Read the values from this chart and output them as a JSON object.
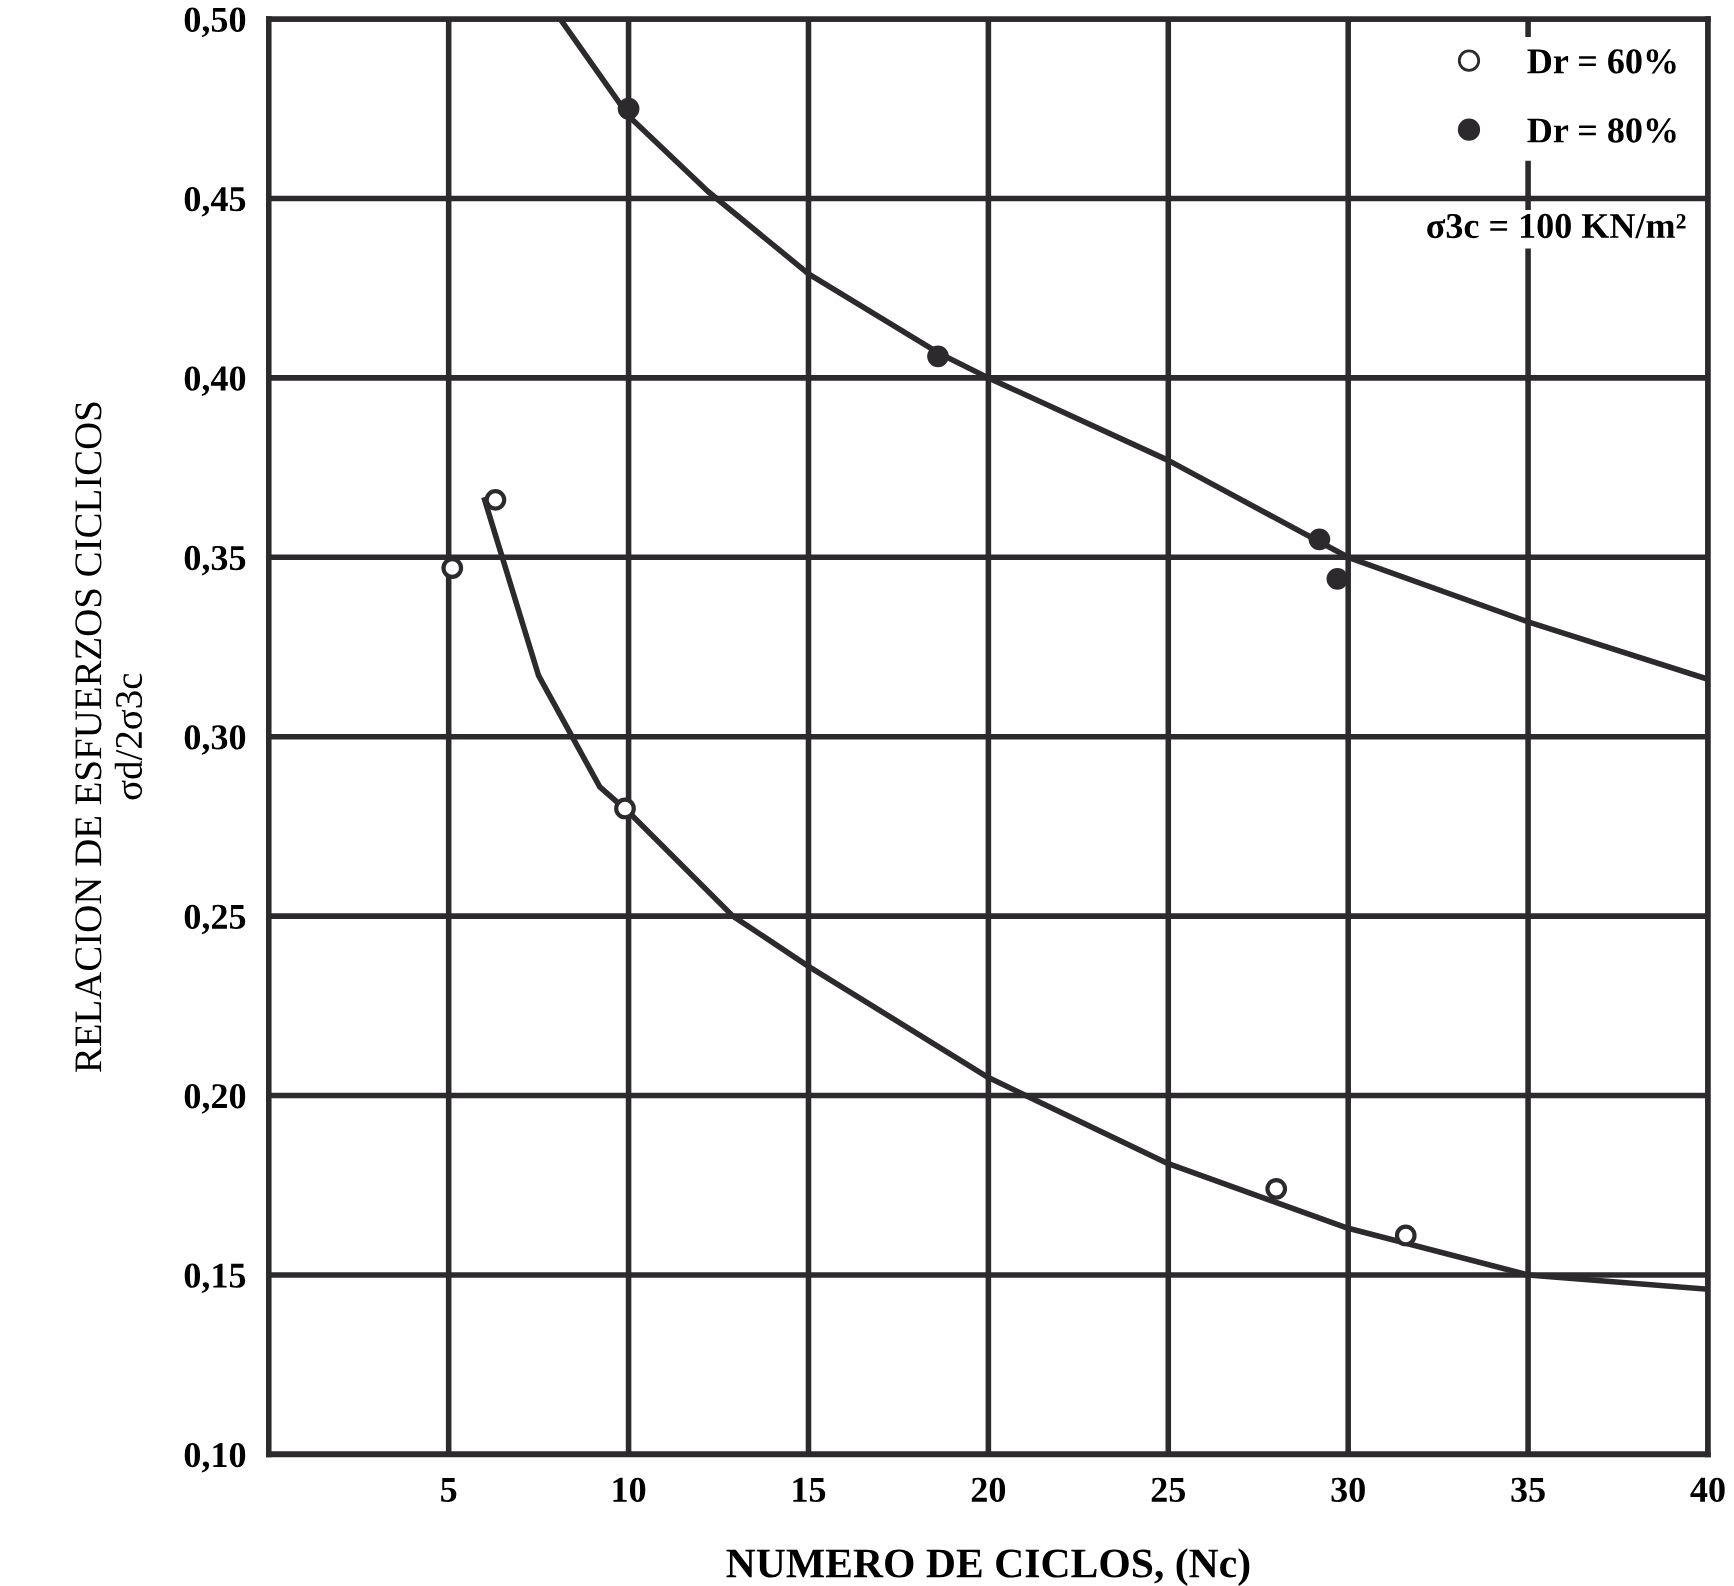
{
  "chart_data": {
    "type": "scatter",
    "xlabel": "NUMERO DE CICLOS, (Nc)",
    "ylabel": "RELACION DE ESFUERZOS CICLICOS\nσd/2σ3c",
    "xlim": [
      0,
      40
    ],
    "xticks": [
      5,
      10,
      15,
      20,
      25,
      30,
      35,
      40
    ],
    "ylim": [
      0.1,
      0.5
    ],
    "yticks": [
      {
        "value": 0.1,
        "label": "0,10"
      },
      {
        "value": 0.15,
        "label": "0,15"
      },
      {
        "value": 0.2,
        "label": "0,20"
      },
      {
        "value": 0.25,
        "label": "0,25"
      },
      {
        "value": 0.3,
        "label": "0,30"
      },
      {
        "value": 0.35,
        "label": "0,35"
      },
      {
        "value": 0.4,
        "label": "0,40"
      },
      {
        "value": 0.45,
        "label": "0,45"
      },
      {
        "value": 0.5,
        "label": "0,50"
      }
    ],
    "grid": true,
    "legend": "top right",
    "annotations": [
      "σ3c = 100 KN/m²"
    ],
    "series": [
      {
        "name": "Dr = 60%",
        "marker": "circle",
        "color": "#ffffff",
        "x": [
          5.1,
          6.3,
          9.9,
          28.0,
          31.6
        ],
        "values": [
          0.347,
          0.366,
          0.28,
          0.174,
          0.161
        ]
      },
      {
        "name": "Dr = 80%",
        "marker": "circle",
        "color": "#2d2a2e",
        "x": [
          10.0,
          18.6,
          29.2,
          29.7
        ],
        "values": [
          0.475,
          0.406,
          0.355,
          0.344
        ]
      },
      {
        "type": "line",
        "color": "#2d2a2e",
        "x": [
          8.1,
          10,
          12.2,
          15,
          18.6,
          20,
          25,
          30,
          35,
          40
        ],
        "values": [
          0.5,
          0.473,
          0.452,
          0.429,
          0.407,
          0.4,
          0.377,
          0.35,
          0.332,
          0.316
        ]
      },
      {
        "type": "line",
        "color": "#2d2a2e",
        "x": [
          6.0,
          7.5,
          9.2,
          10,
          12.9,
          15,
          20,
          25,
          30,
          35,
          40
        ],
        "values": [
          0.366,
          0.317,
          0.286,
          0.279,
          0.25,
          0.236,
          0.205,
          0.181,
          0.163,
          0.15,
          0.146
        ]
      }
    ]
  }
}
